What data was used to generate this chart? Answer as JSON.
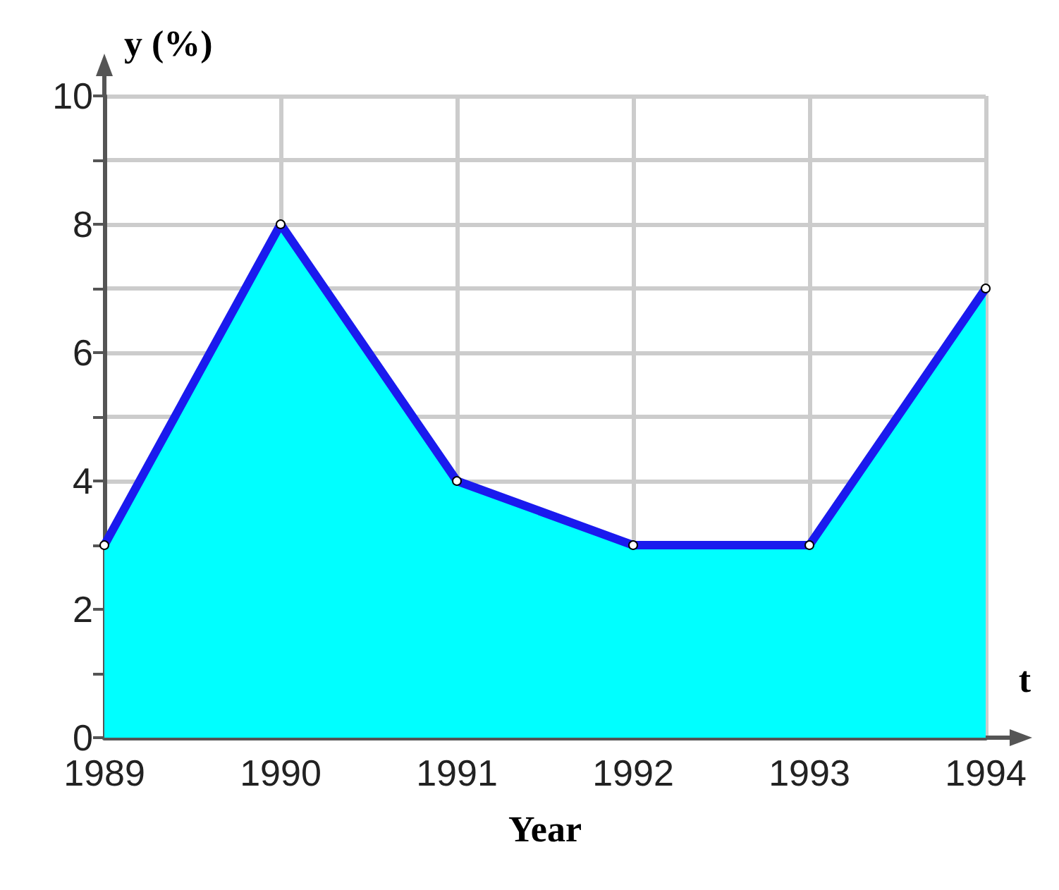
{
  "chart_data": {
    "type": "area",
    "xlabel": "Year",
    "ylabel": "y (%)",
    "annotations": [
      "t"
    ],
    "categories": [
      "1989",
      "1990",
      "1991",
      "1992",
      "1993",
      "1994"
    ],
    "series": [
      {
        "color": "#1a1aee",
        "values": [
          3,
          8,
          4,
          3,
          3,
          7
        ]
      }
    ],
    "ylim": [
      0,
      10
    ],
    "yticks": [
      0,
      {
        "value": 1,
        "label": null
      },
      2,
      {
        "value": 3,
        "label": null
      },
      4,
      {
        "value": 5,
        "label": null
      },
      6,
      {
        "value": 7,
        "label": null
      },
      8,
      {
        "value": 9,
        "label": null
      },
      10
    ],
    "grid": true,
    "marker": "circle",
    "line_style": "solid"
  }
}
